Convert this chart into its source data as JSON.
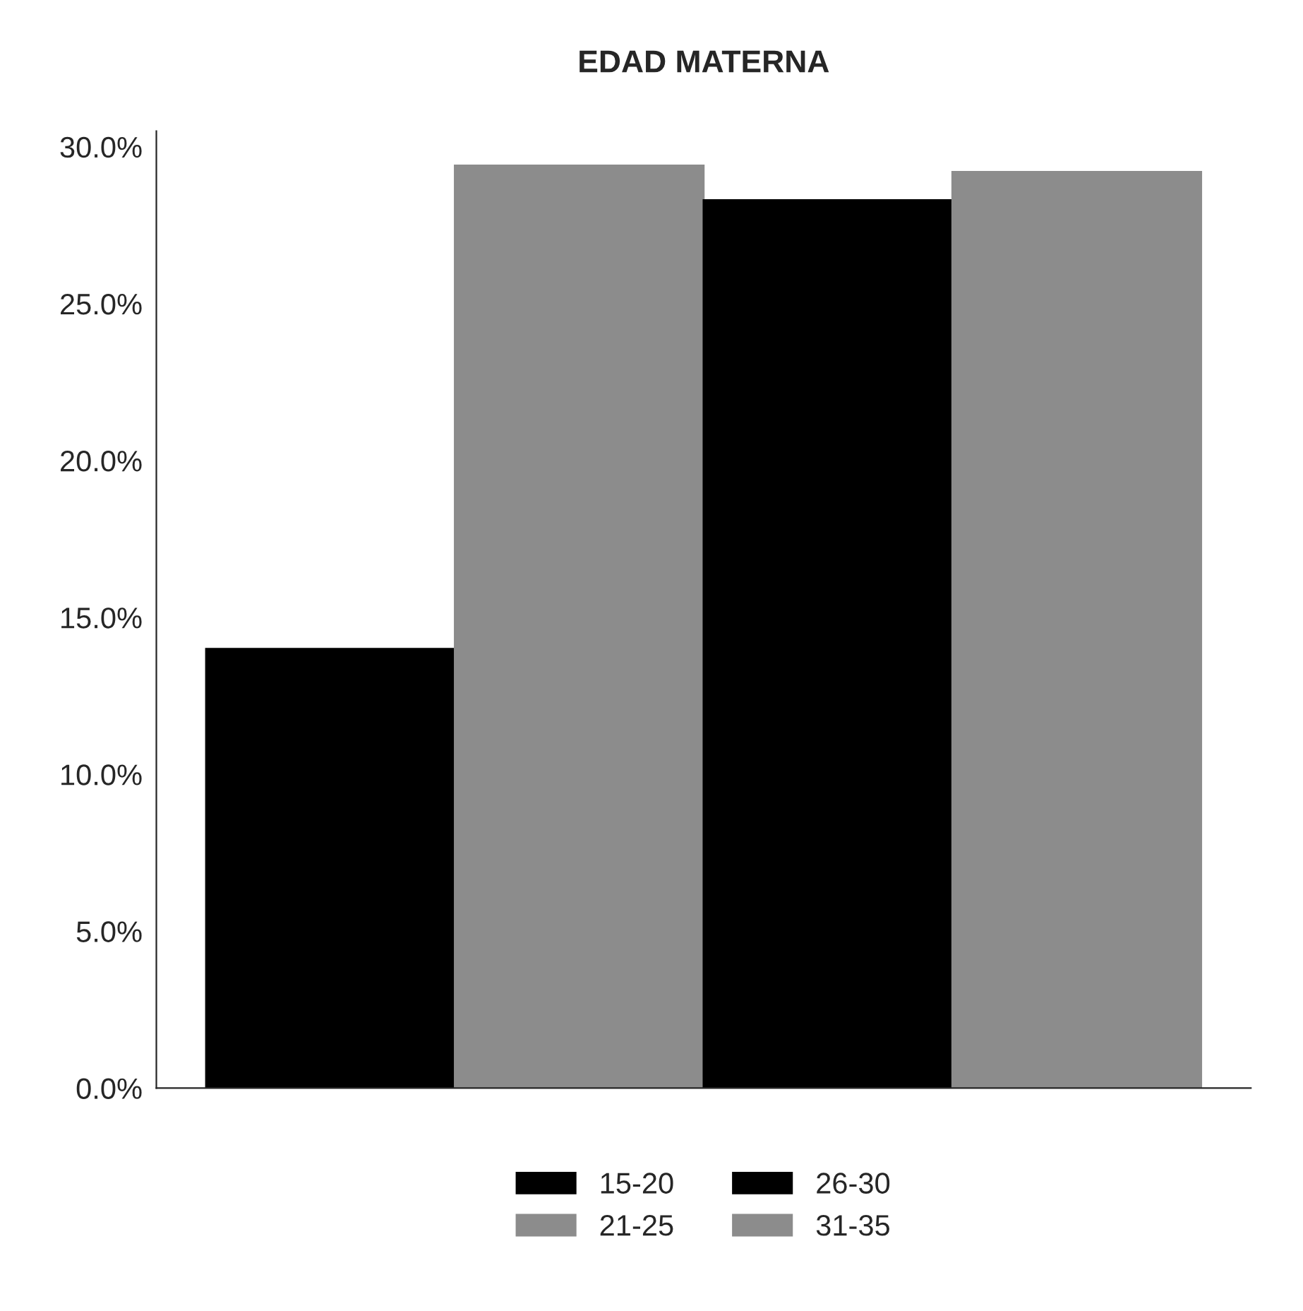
{
  "chart_data": {
    "type": "bar",
    "title": "EDAD MATERNA",
    "categories": [
      null
    ],
    "series": [
      {
        "name": "15-20",
        "color": "#000000",
        "values": [
          14.0
        ]
      },
      {
        "name": "21-25",
        "color": "#8c8c8c",
        "values": [
          29.4
        ]
      },
      {
        "name": "26-30",
        "color": "#000000",
        "values": [
          28.3
        ]
      },
      {
        "name": "31-35",
        "color": "#8c8c8c",
        "values": [
          29.2
        ]
      }
    ],
    "ylim": [
      0,
      30.5
    ],
    "yticks": [
      {
        "value": 0,
        "label": "0.0%"
      },
      {
        "value": 5,
        "label": "5.0%"
      },
      {
        "value": 10,
        "label": "10.0%"
      },
      {
        "value": 15,
        "label": "15.0%"
      },
      {
        "value": 20,
        "label": "20.0%"
      },
      {
        "value": 25,
        "label": "25.0%"
      },
      {
        "value": 30,
        "label": "30.0%"
      }
    ],
    "grid": false,
    "legend": "bottom"
  }
}
